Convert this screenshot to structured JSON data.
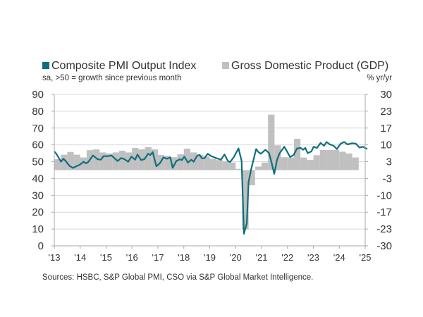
{
  "chart_data": {
    "type": "bar+line",
    "legend_placement": "top",
    "grid": true,
    "source": "Sources: HSBC, S&P Global PMI, CSO via S&P Global Market Intelligence.",
    "colors": {
      "pmi": "#0e6f7e",
      "gdp": "#c0c0c0",
      "grid": "#d9d9d9",
      "axis": "#aaaaaa"
    },
    "x_ticks": [
      "'13",
      "'14",
      "'15",
      "'16",
      "'17",
      "'18",
      "'19",
      "'20",
      "'21",
      "'22",
      "'23",
      "'24",
      "'25"
    ],
    "xlim": [
      2013,
      2025
    ],
    "left_axis": {
      "label": "sa, >50 = growth since previous month",
      "ylim": [
        0,
        90
      ],
      "ticks": [
        90,
        80,
        70,
        60,
        50,
        40,
        30,
        20,
        10,
        0
      ]
    },
    "right_axis": {
      "label": "% yr/yr",
      "ylim": [
        -30,
        30
      ],
      "ticks": [
        "30",
        "23",
        "17",
        "10",
        "3",
        "-3",
        "-10",
        "-17",
        "-23",
        "-30"
      ]
    },
    "series": [
      {
        "name": "Composite PMI Output Index",
        "type": "line",
        "axis": "left",
        "x": [
          2013.0,
          2013.08,
          2013.26,
          2013.35,
          2013.44,
          2013.58,
          2013.72,
          2013.9,
          2013.99,
          2014.13,
          2014.22,
          2014.31,
          2014.49,
          2014.67,
          2014.8,
          2014.9,
          2015.08,
          2015.21,
          2015.44,
          2015.58,
          2015.71,
          2015.85,
          2015.98,
          2016.12,
          2016.21,
          2016.35,
          2016.48,
          2016.62,
          2016.71,
          2016.8,
          2016.94,
          2017.07,
          2017.21,
          2017.35,
          2017.48,
          2017.57,
          2017.71,
          2017.84,
          2017.93,
          2018.02,
          2018.16,
          2018.29,
          2018.38,
          2018.52,
          2018.61,
          2018.7,
          2018.79,
          2018.92,
          2019.06,
          2019.29,
          2019.43,
          2019.57,
          2019.7,
          2019.79,
          2019.93,
          2020.11,
          2020.23,
          2020.32,
          2020.43,
          2020.5,
          2020.6,
          2020.79,
          2020.88,
          2020.97,
          2021.15,
          2021.29,
          2021.38,
          2021.49,
          2021.6,
          2021.7,
          2021.88,
          2022.01,
          2022.1,
          2022.24,
          2022.37,
          2022.51,
          2022.6,
          2022.69,
          2022.78,
          2022.92,
          2023.01,
          2023.14,
          2023.28,
          2023.41,
          2023.51,
          2023.64,
          2023.78,
          2023.91,
          2024.05,
          2024.19,
          2024.32,
          2024.5,
          2024.64,
          2024.78,
          2024.91,
          2025.0,
          2025.08
        ],
        "y": [
          56.1,
          54.7,
          50.0,
          51.8,
          50.4,
          47.6,
          46.3,
          47.6,
          48.3,
          50.0,
          49.0,
          49.8,
          53.7,
          51.5,
          51.2,
          53.3,
          53.3,
          53.7,
          50.4,
          52.2,
          51.5,
          50.0,
          53.0,
          51.2,
          54.3,
          51.0,
          51.5,
          54.7,
          54.0,
          55.7,
          47.3,
          49.0,
          52.5,
          51.8,
          52.5,
          46.3,
          50.4,
          51.4,
          51.0,
          53.0,
          49.5,
          51.2,
          50.0,
          53.7,
          54.0,
          52.0,
          52.0,
          54.7,
          53.3,
          51.9,
          51.2,
          54.3,
          50.5,
          49.8,
          52.8,
          57.9,
          50.5,
          7.2,
          13.5,
          38.0,
          45.6,
          57.5,
          55.7,
          54.7,
          57.1,
          55.1,
          49.8,
          42.8,
          51.2,
          55.1,
          58.9,
          55.4,
          52.8,
          54.0,
          57.9,
          58.2,
          57.1,
          58.2,
          55.1,
          56.1,
          58.9,
          58.2,
          61.2,
          59.5,
          61.7,
          60.3,
          59.5,
          57.5,
          60.7,
          61.7,
          60.3,
          61.0,
          60.7,
          58.4,
          58.9,
          58.2,
          57.5
        ]
      },
      {
        "name": "Gross Domestic Product (GDP)",
        "type": "bar",
        "axis": "right",
        "categories": [
          "2013Q1",
          "2013Q2",
          "2013Q3",
          "2013Q4",
          "2014Q1",
          "2014Q2",
          "2014Q3",
          "2014Q4",
          "2015Q1",
          "2015Q2",
          "2015Q3",
          "2015Q4",
          "2016Q1",
          "2016Q2",
          "2016Q3",
          "2016Q4",
          "2017Q1",
          "2017Q2",
          "2017Q3",
          "2017Q4",
          "2018Q1",
          "2018Q2",
          "2018Q3",
          "2018Q4",
          "2019Q1",
          "2019Q2",
          "2019Q3",
          "2019Q4",
          "2020Q1",
          "2020Q2",
          "2020Q3",
          "2020Q4",
          "2021Q1",
          "2021Q2",
          "2021Q3",
          "2021Q4",
          "2022Q1",
          "2022Q2",
          "2022Q3",
          "2022Q4",
          "2023Q1",
          "2023Q2",
          "2023Q3",
          "2023Q4",
          "2024Q1",
          "2024Q2",
          "2024Q3"
        ],
        "values": [
          4.3,
          6.1,
          7.2,
          6.1,
          5.0,
          7.9,
          8.2,
          7.0,
          6.6,
          7.0,
          7.7,
          7.0,
          8.8,
          8.2,
          9.1,
          8.2,
          6.0,
          5.7,
          5.1,
          6.3,
          8.5,
          7.0,
          6.0,
          5.4,
          4.5,
          4.0,
          3.5,
          3.0,
          0.5,
          -23.5,
          -6.0,
          1.4,
          3.0,
          22.0,
          9.8,
          5.1,
          5.0,
          12.4,
          5.0,
          4.0,
          5.9,
          8.0,
          8.0,
          8.0,
          7.3,
          6.6,
          5.0
        ]
      }
    ]
  }
}
